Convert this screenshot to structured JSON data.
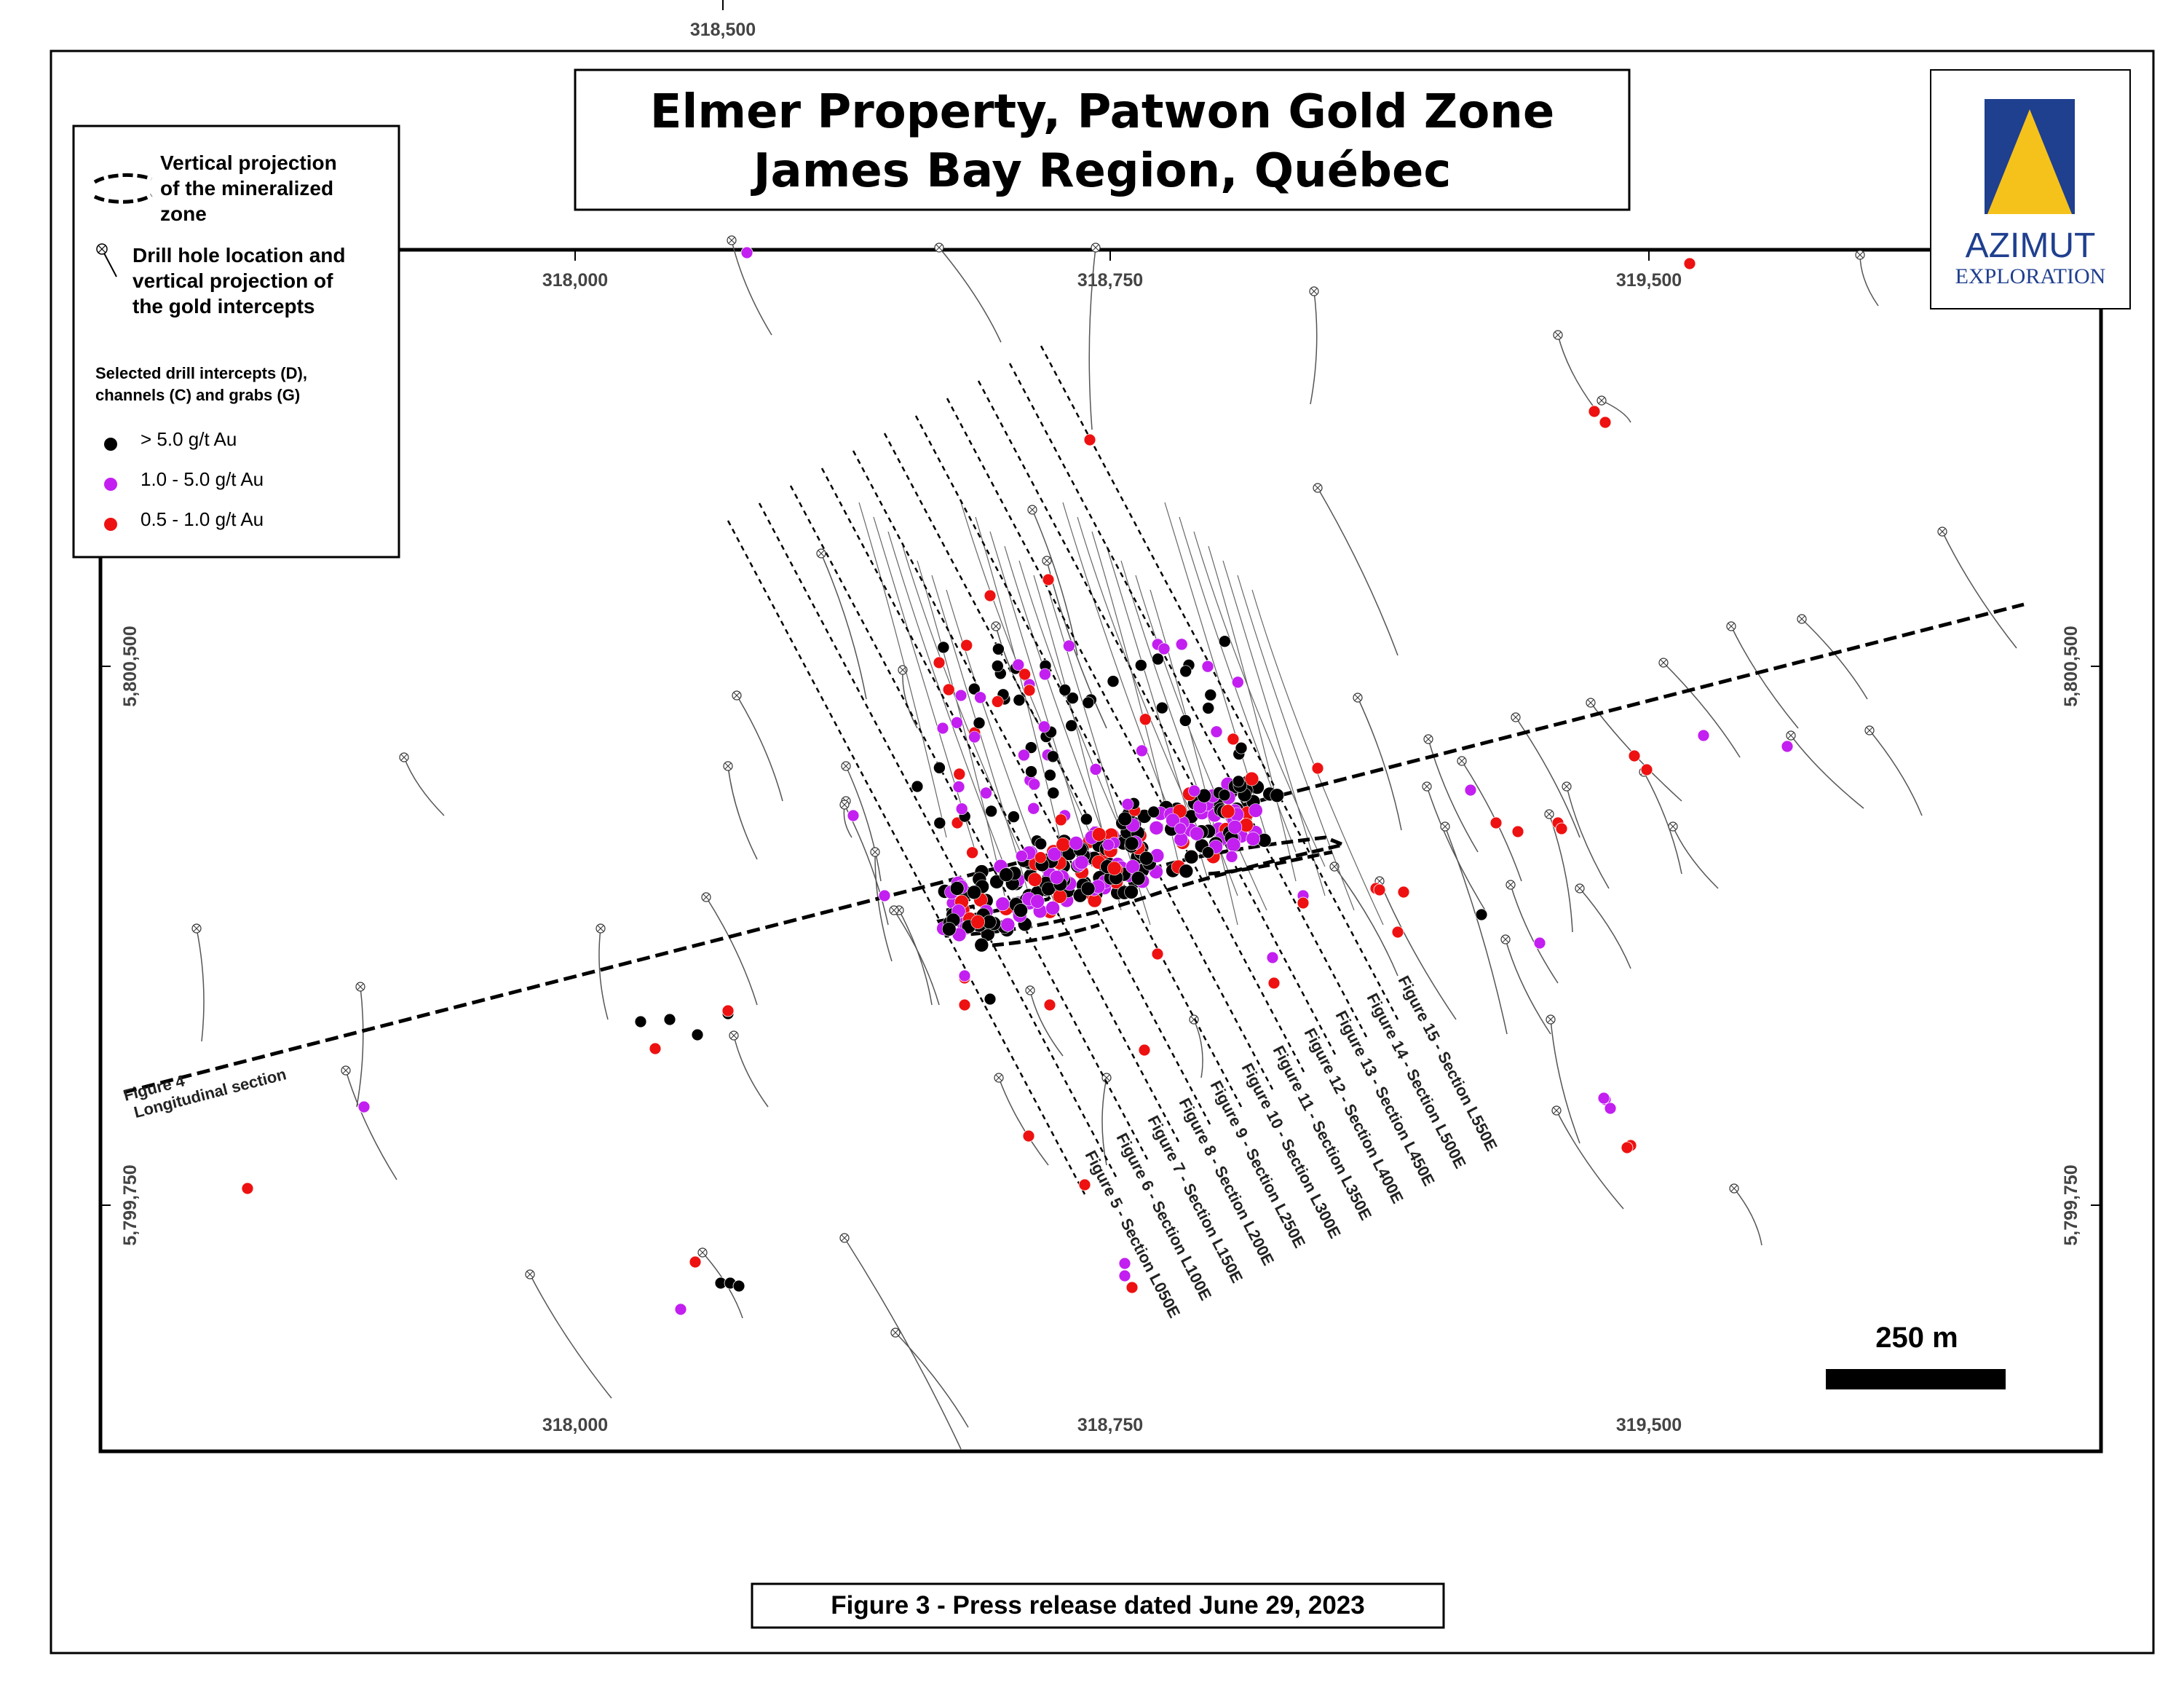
{
  "title": {
    "line1": "Elmer Property, Patwon Gold Zone",
    "line2": "James Bay Region, Québec"
  },
  "logo": {
    "name": "AZIMUT",
    "subtitle": "EXPLORATION"
  },
  "legend": {
    "mineralized_zone": [
      "Vertical projection",
      "of the mineralized",
      "zone"
    ],
    "drill_hole": [
      "Drill hole location and",
      "vertical projection of",
      "the gold intercepts"
    ],
    "intercepts_heading": [
      "Selected drill intercepts (D),",
      "channels (C) and grabs (G)"
    ],
    "grades": [
      {
        "label": "> 5.0 g/t Au",
        "color": "#000000"
      },
      {
        "label": "1.0 - 5.0 g/t Au",
        "color": "#c21ff0"
      },
      {
        "label": "0.5 - 1.0 g/t Au",
        "color": "#ee1111"
      }
    ]
  },
  "grid": {
    "outer_top_easting": "318,500",
    "eastings_top": [
      "318,000",
      "318,750",
      "319,500"
    ],
    "eastings_bottom": [
      "318,000",
      "318,750",
      "319,500"
    ],
    "northings_left": [
      "5,800,500",
      "5,799,750"
    ],
    "northings_right": [
      "5,800,500",
      "5,799,750"
    ]
  },
  "longitudinal_label": [
    "Figure 4",
    "Longitudinal section"
  ],
  "sections": [
    "Figure 5 - Section L050E",
    "Figure 6 - Section L100E",
    "Figure 7 - Section L150E",
    "Figure 8 - Section L200E",
    "Figure 9 - Section L250E",
    "Figure 10 - Section L300E",
    "Figure 11 - Section L350E",
    "Figure 12 - Section L400E",
    "Figure 13 - Section L450E",
    "Figure 14 - Section L500E",
    "Figure 15 - Section L550E"
  ],
  "scale_bar": "250 m",
  "caption": "Figure 3 - Press release dated June 29, 2023",
  "colors": {
    "high": "#000000",
    "medium": "#c21ff0",
    "low": "#ee1111",
    "logo_blue": "#1f3f8f",
    "logo_gold": "#f5c21b"
  }
}
